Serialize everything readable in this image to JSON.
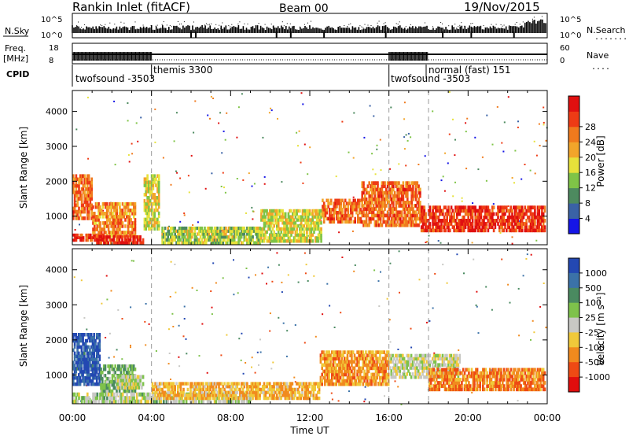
{
  "header": {
    "station_title": "Rankin Inlet (fitACF)",
    "beam": "Beam 00",
    "date": "19/Nov/2015"
  },
  "strip_nsky": {
    "left_label": "N.Sky",
    "right_label": "N.Search",
    "right_dots": "........",
    "left_ticks": [
      "10^5",
      "10^0"
    ],
    "right_ticks": [
      "10^5",
      "10^0"
    ]
  },
  "strip_freq": {
    "left_label_top": "Freq.",
    "left_label_bottom": "[MHz]",
    "right_label": "Nave",
    "right_dots": "....",
    "left_ticks": [
      "18",
      "8"
    ],
    "right_ticks": [
      "60",
      "0"
    ]
  },
  "cpid": {
    "label": "CPID",
    "segments": [
      {
        "name": "twofsound -3503",
        "start_hour": 0.0
      },
      {
        "name": "themis 3300",
        "start_hour": 4.0
      },
      {
        "name": "twofsound -3503",
        "start_hour": 16.0
      },
      {
        "name": "normal (fast) 151",
        "start_hour": 18.0
      }
    ]
  },
  "time_axis": {
    "ticks": [
      "00:00",
      "04:00",
      "08:00",
      "12:00",
      "16:00",
      "20:00",
      "00:00"
    ],
    "title": "Time UT"
  },
  "range_axis": {
    "title": "Slant Range [km]",
    "ticks": [
      "1000",
      "2000",
      "3000",
      "4000"
    ]
  },
  "power_scale": {
    "title": "Power [dB]",
    "labels": [
      "4",
      "8",
      "12",
      "16",
      "20",
      "24",
      "28"
    ],
    "colors": [
      "#1515e6",
      "#3a62a6",
      "#4d8a5f",
      "#7fc447",
      "#e7e23a",
      "#f2a52a",
      "#f07a1d",
      "#ee3b15",
      "#e01010"
    ]
  },
  "velocity_scale": {
    "title": "Velocity [m s⁻¹]",
    "labels": [
      "1000",
      "500",
      "100",
      "25",
      "-25",
      "-100",
      "-500",
      "-1000"
    ],
    "colors": [
      "#2348b2",
      "#3b72a8",
      "#4a8a60",
      "#7ec24b",
      "#c8c8c4",
      "#f0c93a",
      "#f18a1e",
      "#ee4a14",
      "#e00d0d"
    ]
  },
  "chart_data": [
    {
      "type": "heatmap",
      "title": "Power [dB]",
      "xlabel": "",
      "ylabel": "Slant Range [km]",
      "x_range_hours": [
        0,
        24
      ],
      "y_range_km": [
        180,
        4600
      ],
      "colorbar_range": [
        0,
        32
      ],
      "approx_regions": [
        {
          "t0": 0.0,
          "t1": 1.0,
          "r0": 900,
          "r1": 2200,
          "value": 24
        },
        {
          "t0": 0.0,
          "t1": 1.6,
          "r0": 280,
          "r1": 500,
          "value": 28
        },
        {
          "t0": 1.0,
          "t1": 3.2,
          "r0": 400,
          "r1": 1400,
          "value": 22
        },
        {
          "t0": 1.2,
          "t1": 3.6,
          "r0": 200,
          "r1": 450,
          "value": 28
        },
        {
          "t0": 3.6,
          "t1": 4.4,
          "r0": 600,
          "r1": 2200,
          "value": 16
        },
        {
          "t0": 4.5,
          "t1": 9.5,
          "r0": 200,
          "r1": 700,
          "value": 14
        },
        {
          "t0": 9.5,
          "t1": 12.6,
          "r0": 250,
          "r1": 1200,
          "value": 16
        },
        {
          "t0": 12.6,
          "t1": 14.6,
          "r0": 800,
          "r1": 1500,
          "value": 24
        },
        {
          "t0": 14.6,
          "t1": 17.6,
          "r0": 700,
          "r1": 2000,
          "value": 24
        },
        {
          "t0": 17.6,
          "t1": 23.9,
          "r0": 550,
          "r1": 1300,
          "value": 28
        }
      ]
    },
    {
      "type": "heatmap",
      "title": "Velocity [m s⁻¹]",
      "xlabel": "Time UT",
      "ylabel": "Slant Range [km]",
      "x_range_hours": [
        0,
        24
      ],
      "y_range_km": [
        180,
        4600
      ],
      "colorbar_range": [
        -1000,
        1000
      ],
      "approx_regions": [
        {
          "t0": 0.0,
          "t1": 1.4,
          "r0": 700,
          "r1": 2200,
          "value": 800
        },
        {
          "t0": 1.4,
          "t1": 3.2,
          "r0": 500,
          "r1": 1300,
          "value": 300
        },
        {
          "t0": 2.2,
          "t1": 3.6,
          "r0": 600,
          "r1": 1000,
          "value": 0
        },
        {
          "t0": 0.0,
          "t1": 9.0,
          "r0": 200,
          "r1": 500,
          "value": 100
        },
        {
          "t0": 4.0,
          "t1": 12.5,
          "r0": 300,
          "r1": 800,
          "value": -300
        },
        {
          "t0": 12.5,
          "t1": 16.0,
          "r0": 700,
          "r1": 1700,
          "value": -400
        },
        {
          "t0": 16.0,
          "t1": 19.6,
          "r0": 900,
          "r1": 1600,
          "value": 0
        },
        {
          "t0": 18.0,
          "t1": 23.9,
          "r0": 550,
          "r1": 1200,
          "value": -500
        }
      ]
    }
  ]
}
